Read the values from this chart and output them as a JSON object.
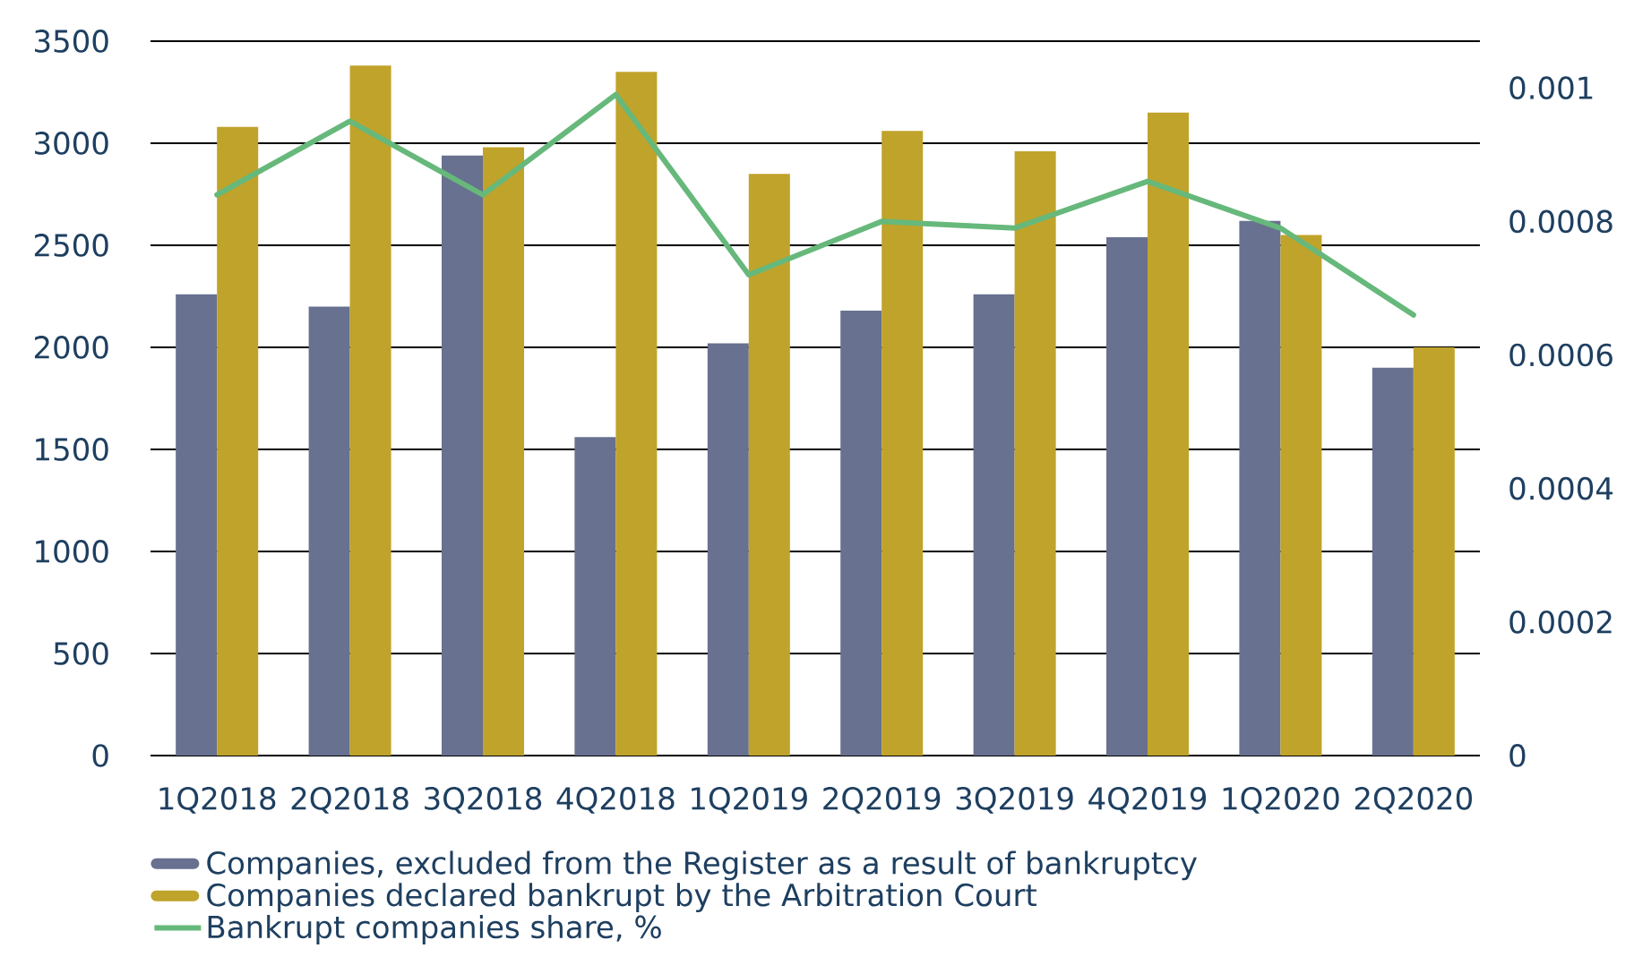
{
  "chart_data": {
    "type": "bar",
    "categories": [
      "1Q2018",
      "2Q2018",
      "3Q2018",
      "4Q2018",
      "1Q2019",
      "2Q2019",
      "3Q2019",
      "4Q2019",
      "1Q2020",
      "2Q2020"
    ],
    "series": [
      {
        "name": "Companies, excluded from the Register as a result of bankruptcy",
        "color": "#68718f",
        "values": [
          2260,
          2200,
          2940,
          1560,
          2020,
          2180,
          2260,
          2540,
          2620,
          1900
        ]
      },
      {
        "name": "Companies declared bankrupt by the Arbitration Court",
        "color": "#c0a32b",
        "values": [
          3080,
          3380,
          2980,
          3350,
          2850,
          3060,
          2960,
          3150,
          2550,
          2000
        ]
      },
      {
        "name": "Bankrupt companies share, %",
        "type": "line",
        "axis": "y2",
        "color": "#66b87b",
        "values": [
          0.00084,
          0.00095,
          0.00084,
          0.00099,
          0.00072,
          0.0008,
          0.00079,
          0.00086,
          0.00079,
          0.00066
        ]
      }
    ],
    "ylim": [
      0,
      3500
    ],
    "yticks": [
      0,
      500,
      1000,
      1500,
      2000,
      2500,
      3000,
      3500
    ],
    "y2lim": [
      0,
      0.00107
    ],
    "y2ticks": [
      0,
      0.0002,
      0.0004,
      0.0006,
      0.0008,
      0.001
    ],
    "grid": "y",
    "legend": "bottom"
  }
}
